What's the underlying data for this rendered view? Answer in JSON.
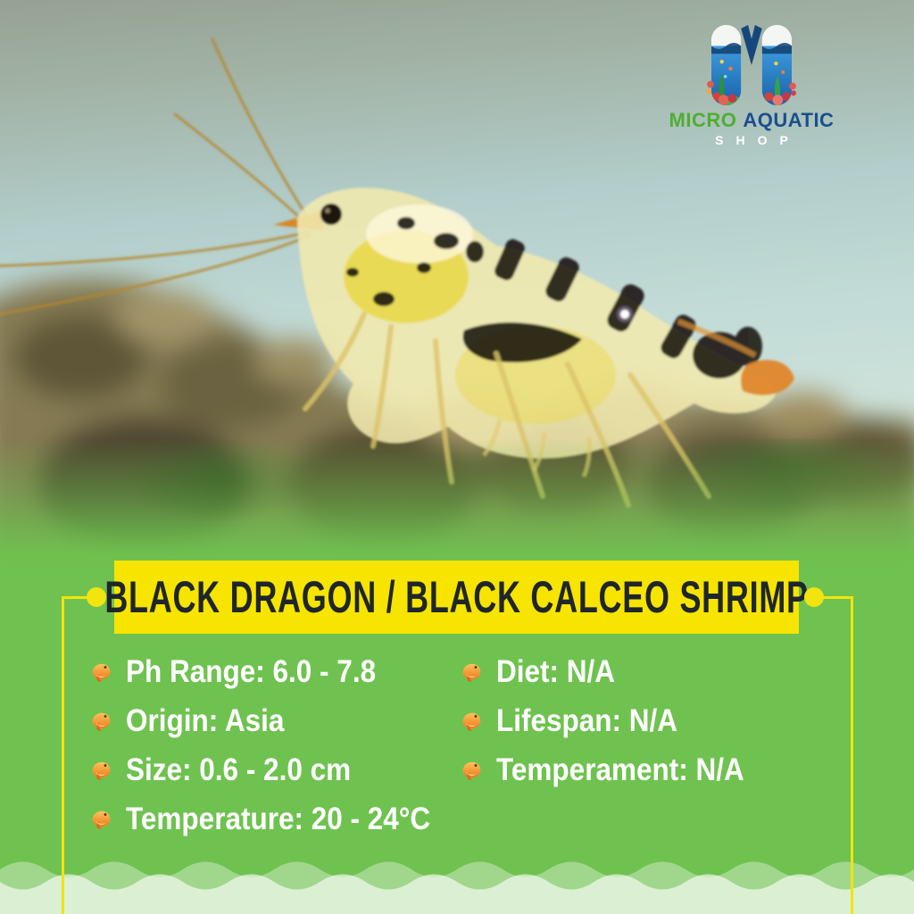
{
  "brand": {
    "micro": "MICRO",
    "aquatic": "AQUATIC",
    "shop": "SHOP"
  },
  "title": "BLACK DRAGON / BLACK CALCEO SHRIMP",
  "specs": {
    "left": [
      {
        "label": "Ph Range",
        "value": "6.0 - 7.8",
        "text": "Ph Range: 6.0 - 7.8"
      },
      {
        "label": "Origin",
        "value": "Asia",
        "text": "Origin: Asia"
      },
      {
        "label": "Size",
        "value": "0.6 - 2.0 cm",
        "text": "Size: 0.6 - 2.0 cm"
      },
      {
        "label": "Temperature",
        "value": "20 - 24°C",
        "text": "Temperature: 20 - 24°C"
      }
    ],
    "right": [
      {
        "label": "Diet",
        "value": "N/A",
        "text": "Diet: N/A"
      },
      {
        "label": "Lifespan",
        "value": "N/A",
        "text": "Lifespan: N/A"
      },
      {
        "label": "Temperament",
        "value": "N/A",
        "text": "Temperament: N/A"
      }
    ]
  },
  "icons": {
    "bullet": "fish-icon",
    "logo": "aquatic-m-logo"
  },
  "colors": {
    "panel_green": "#6fc24f",
    "banner_yellow": "#f7e400",
    "accent_yellow": "#f2e40e",
    "title_text": "#1f262b",
    "list_text": "#ffffff",
    "logo_micro": "#4fae31",
    "logo_aquatic": "#1a4e8e",
    "logo_shop": "#ffffff",
    "fish_bullet_orange": "#ef7c1d"
  }
}
